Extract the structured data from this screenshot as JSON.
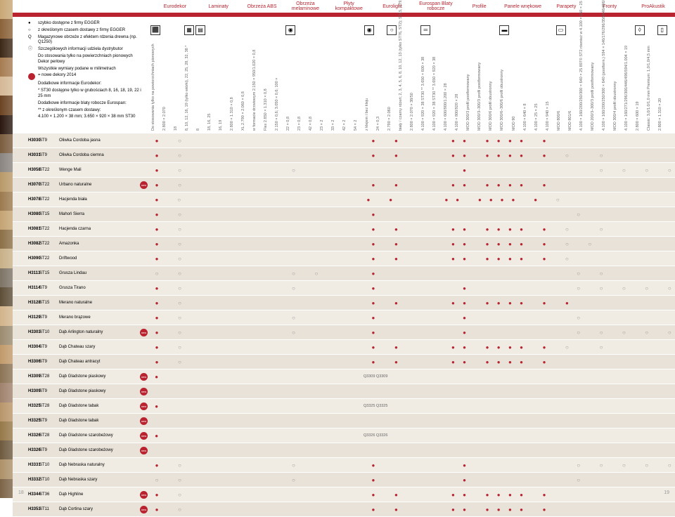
{
  "tabs": [
    "Eurodekor",
    "Laminaty",
    "Obrzeża ABS",
    "Obrzeża melaminowe",
    "Płyty kompaktowe",
    "Eurolight",
    "Eurospan Blaty robocze",
    "Profile",
    "Panele wnękowe",
    "Parapety",
    "Fronty",
    "ProAkustik"
  ],
  "legend": [
    {
      "s": "●",
      "t": "szybko dostępne z firmy EGGER"
    },
    {
      "s": "○",
      "t": "z określonym czasem dostawy z firmy EGGER"
    },
    {
      "s": "Q",
      "t": "Magazynowe obrzeże z efektem rdzenia drewna (np. Q1250)"
    },
    {
      "s": "ⓘ",
      "t": "Szczegółowych informacji udziela dystrybutor"
    },
    {
      "s": "",
      "t": "Do stosowania tylko na powierzchniach pionowych Dekor perłowy"
    },
    {
      "s": "",
      "t": "Wszystkie wymiary podane w milimetrach"
    },
    {
      "s": "●",
      "t": "= nowe dekory 2014"
    },
    {
      "s": "",
      "t": "Dodatkowe informacje Eurodekor:"
    },
    {
      "s": "",
      "t": "* ST30 dostępne tylko w grubościach 8, 16, 18, 19, 22 i 25 mm"
    },
    {
      "s": "",
      "t": "Dodatkowe informacje blaty robocze Eurospan:"
    },
    {
      "s": "",
      "t": "** z określonym czasem dostawy:"
    },
    {
      "s": "",
      "t": "4.100 × 1.200 × 38 mm; 3.650 × 920 × 38 mm ST30"
    }
  ],
  "colHeaders": [
    {
      "t": "Do stosowania tylko na powierzchniach pionowych",
      "i": "⬛"
    },
    {
      "t": "2.800 × 2.070",
      "i": ""
    },
    {
      "t": "18",
      "i": ""
    },
    {
      "t": "8, 10, 12, 16, 19 (tylko wiórki), 22, 25, 28, 32, 38 *",
      "i": "▦"
    },
    {
      "t": "8",
      "i": "▤"
    },
    {
      "t": "18, 16, 25",
      "i": ""
    },
    {
      "t": "16, 19",
      "i": ""
    },
    {
      "t": "2.800 × 1.310 × 0,8",
      "i": ""
    },
    {
      "t": "XL 2.790 × 2.060 × 0,8",
      "i": ""
    },
    {
      "t": "w formacie drzwiowym 2.150 × 950/1.020 × 0,8",
      "i": ""
    },
    {
      "t": "Flex 2.850 × 1.310 × 0,8",
      "i": ""
    },
    {
      "t": "2.150 × 0,6; 3.050 × 0,6; 100 ×",
      "i": ""
    },
    {
      "t": "22 × 0,8",
      "i": "◉"
    },
    {
      "t": "23 × 0,8",
      "i": ""
    },
    {
      "t": "42 × 0,8",
      "i": ""
    },
    {
      "t": "23 × 2",
      "i": ""
    },
    {
      "t": "33 × 2",
      "i": ""
    },
    {
      "t": "42 × 2",
      "i": ""
    },
    {
      "t": "54 × 2",
      "i": ""
    },
    {
      "t": "z klejem i bez kleju",
      "i": "◉"
    },
    {
      "t": "24 × 0,3",
      "i": ""
    },
    {
      "t": "2.790 × 2.060",
      "i": "○"
    },
    {
      "t": "biały / czarny rdzeń; 2, 3, 4, 5, 6, 8, 10, 12, 13 (tylko ST76, ST2); ST15, ST9, ST76 lub ST2",
      "i": ""
    },
    {
      "t": "2.800 × 2.070 × 38/50",
      "i": ""
    },
    {
      "t": "4.100 × 920 × 38 ST30 ** 3.650 × 600 × 38",
      "i": "═"
    },
    {
      "t": "4.100 × 920 × 38 ST30 ** 3.650 × 920 × 38",
      "i": ""
    },
    {
      "t": "4.100 × 600/900/1.200 × 28",
      "i": ""
    },
    {
      "t": "4.100 × 800/920 × 28",
      "i": ""
    },
    {
      "t": "MOD 300/3 profil postformowany",
      "i": ""
    },
    {
      "t": "MOD 300/3–300/3 profil postformowany",
      "i": ""
    },
    {
      "t": "MOD 300/6 profil obustronny",
      "i": ""
    },
    {
      "t": "MOD 300/6–300/6 profil obustronny",
      "i": "▬"
    },
    {
      "t": "MOD 90",
      "i": ""
    },
    {
      "t": "4.100 × 640 × 8",
      "i": ""
    },
    {
      "t": "4.100 × 25 × 25",
      "i": ""
    },
    {
      "t": "4.100 × 940 × 15",
      "i": ""
    },
    {
      "t": "MOD 800/6",
      "i": "▭"
    },
    {
      "t": "MOD 801/6",
      "i": ""
    },
    {
      "t": "4.100 × 160/200/250/300 × 640 × 25 897© ST2 również w 4.100 × 150 × 25",
      "i": ""
    },
    {
      "t": "MOD 200/3–300/3 profil postformowany",
      "i": ""
    },
    {
      "t": "4.100 × 160/200/250/300 × 640 (postform.) 594 × 146/176/296/356/446/496/594/1.004 × 19",
      "i": ""
    },
    {
      "t": "MOD 300/4 profil obustronny",
      "i": ""
    },
    {
      "t": "4.100 × 160/271/296/300/446/496/594/1.004 × 19",
      "i": ""
    },
    {
      "t": "2.800 × 600 × 19",
      "i": "◊"
    },
    {
      "t": "Classic: 3,0/1.0/1,0 mm Premium: 1,0/1,0/4,5 mm",
      "i": ""
    },
    {
      "t": "2.800 × 1.310 × 20",
      "i": "▯"
    }
  ],
  "rows": [
    {
      "c": "H3030",
      "st": "ST9",
      "n": "Oliwka Cordoba jasna",
      "new": 0,
      "d": "f.e................f.f....ff.ffff.f..........."
    },
    {
      "c": "H3031",
      "st": "ST9",
      "n": "Oliwka Cordoba ciemna",
      "new": 0,
      "d": "f.e................f.f....ff.ffff.f.e..e......"
    },
    {
      "c": "H3058",
      "st": "ST22",
      "n": "Wenge Mali",
      "new": 0,
      "d": "f.e.........e..............f...........e.e.e.e"
    },
    {
      "c": "H3070",
      "st": "ST22",
      "n": "Urbano naturalne",
      "new": 1,
      "d": "f.e................f.f....ff.ffff.f..........."
    },
    {
      "c": "H3078",
      "st": "ST22",
      "n": "Hacjenda biała",
      "new": 0,
      "d": "f.e................f.f....ff.ffff.f.e.........."
    },
    {
      "c": "H3080",
      "st": "ST15",
      "n": "Mahoń Sierra",
      "new": 0,
      "d": "f.e................f.................e........"
    },
    {
      "c": "H3081",
      "st": "ST22",
      "n": "Hacjenda czarna",
      "new": 0,
      "d": "f.e................f.f....ff.ffff.f.e..e......"
    },
    {
      "c": "H3082",
      "st": "ST22",
      "n": "Amazonka",
      "new": 0,
      "d": "f.e................f.f....ff.ffff.f.e.e......."
    },
    {
      "c": "H3090",
      "st": "ST22",
      "n": "Driftwood",
      "new": 0,
      "d": "f.e................f.f....ff.ffff.f.e........."
    },
    {
      "c": "H3113",
      "st": "ST15",
      "n": "Grusza Lindau",
      "new": 0,
      "d": "e.e.........e.e....f.................e.e......"
    },
    {
      "c": "H3114",
      "st": "ST9",
      "n": "Grusza Tirano",
      "new": 0,
      "d": "f.e.........e......f.......f.........e.e.e.e.e"
    },
    {
      "c": "H3128",
      "st": "ST15",
      "n": "Merano naturalne",
      "new": 0,
      "d": "f.e................f.f....ff.ffff.f.f........."
    },
    {
      "c": "H3129",
      "st": "ST9",
      "n": "Merano brązowe",
      "new": 0,
      "d": "f.e.........e......f.......f.........e........"
    },
    {
      "c": "H3303",
      "st": "ST10",
      "n": "Dąb Arlington naturalny",
      "new": 1,
      "d": "f.e.........e......f.......f.........e.e.e.e.e"
    },
    {
      "c": "H3304",
      "st": "ST9",
      "n": "Dąb Chateau szary",
      "new": 0,
      "d": "f.e................f.f....ff.ffff.f.e..e......"
    },
    {
      "c": "H3306",
      "st": "ST9",
      "n": "Dąb Chateau antracyt",
      "new": 0,
      "d": "f.e................f.f....ff.ffff.f..........."
    },
    {
      "c": "H3309",
      "st": "ST28",
      "n": "Dąb Gladstone piaskowy",
      "new": 1,
      "d": "f..................f..........................",
      "q": "Q3309 Q3309"
    },
    {
      "c": "H3309",
      "st": "ST9",
      "n": "Dąb Gladstone piaskowy",
      "new": 1,
      "d": ".............................................."
    },
    {
      "c": "H3325",
      "st": "ST28",
      "n": "Dąb Gladstone tabak",
      "new": 1,
      "d": "f..................f..........................",
      "q": "Q3325 Q3325"
    },
    {
      "c": "H3325",
      "st": "ST9",
      "n": "Dąb Gladstone tabak",
      "new": 1,
      "d": ".............................................."
    },
    {
      "c": "H3326",
      "st": "ST28",
      "n": "Dąb Gladstone szarobeżowy",
      "new": 1,
      "d": "f..................f..........................",
      "q": "Q3326 Q3326"
    },
    {
      "c": "H3326",
      "st": "ST9",
      "n": "Dąb Gladstone szarobeżowy",
      "new": 1,
      "d": ".............................................."
    },
    {
      "c": "H3331",
      "st": "ST10",
      "n": "Dąb Nebraska naturalny",
      "new": 0,
      "d": "f.e.........e......f.......f.........e.e.e.e.e"
    },
    {
      "c": "H3332",
      "st": "ST10",
      "n": "Dąb Nebraska szary",
      "new": 0,
      "d": "e.e.........e......f.......f.........e........"
    },
    {
      "c": "H3344",
      "st": "ST36",
      "n": "Dąb Highline",
      "new": 1,
      "d": "f.e................f.f....ff.ffff.f..........."
    },
    {
      "c": "H3353",
      "st": "ST11",
      "n": "Dąb Cortina szary",
      "new": 1,
      "d": "f.e................f.f....ff.ffff.f..........."
    }
  ],
  "pageL": "18",
  "pageR": "19",
  "colors": {
    "red": "#b8232f",
    "rowOdd": "#f0ebe3",
    "rowEven": "#e8e2d8"
  }
}
